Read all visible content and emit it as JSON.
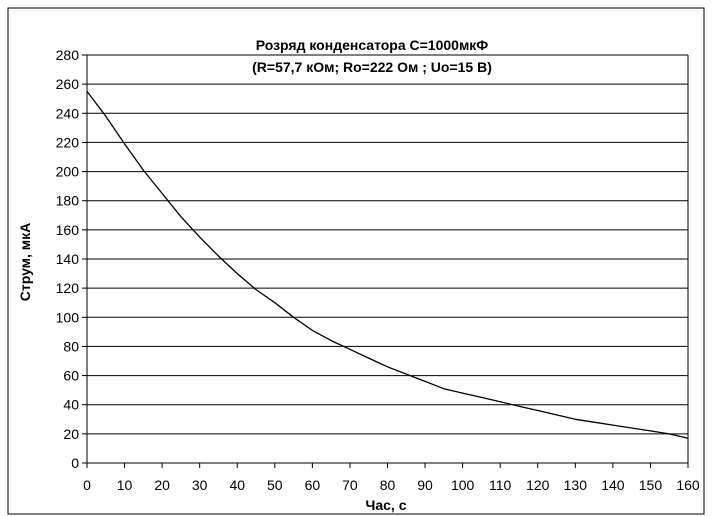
{
  "chart_data": {
    "type": "line",
    "title": "Розряд конденсатора С=1000мкФ",
    "subtitle": "(R=57,7 кОм; Ro=222 Ом ; Uo=15 В)",
    "xlabel": "Час, с",
    "ylabel": "Струм, мкА",
    "xlim": [
      0,
      160
    ],
    "ylim": [
      0,
      280
    ],
    "x_ticks": [
      "0",
      "10",
      "20",
      "30",
      "40",
      "50",
      "60",
      "70",
      "80",
      "90",
      "100",
      "110",
      "120",
      "130",
      "140",
      "150",
      "160"
    ],
    "y_ticks": [
      "0",
      "20",
      "40",
      "60",
      "80",
      "100",
      "120",
      "140",
      "160",
      "180",
      "200",
      "220",
      "240",
      "260",
      "280"
    ],
    "grid": "horizontal",
    "legend": "none",
    "series": [
      {
        "x": [
          0,
          5,
          10,
          15,
          20,
          25,
          30,
          35,
          40,
          45,
          50,
          55,
          60,
          65,
          70,
          75,
          80,
          85,
          90,
          95,
          100,
          105,
          110,
          115,
          120,
          125,
          130,
          135,
          140,
          145,
          150,
          155,
          160
        ],
        "y": [
          255,
          238,
          219,
          201,
          185,
          169,
          155,
          142,
          130,
          119,
          110,
          100,
          91,
          84,
          78,
          72,
          66,
          61,
          56,
          51,
          48,
          45,
          42,
          39,
          36,
          33,
          30,
          28,
          26,
          24,
          22,
          20,
          17
        ],
        "color": "#000000"
      }
    ]
  }
}
